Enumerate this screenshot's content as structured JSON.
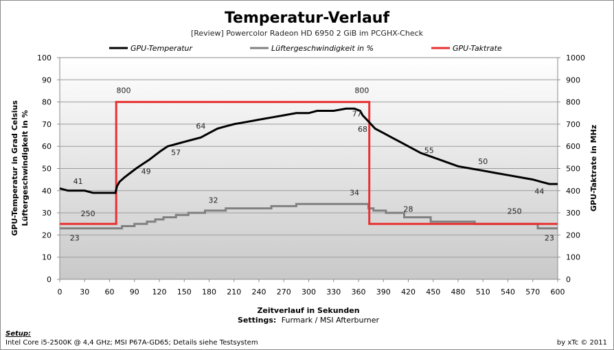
{
  "chart_data": {
    "type": "line",
    "title": "Temperatur-Verlauf",
    "subtitle": "[Review] Powercolor Radeon HD 6950 2 GiB im PCGHX-Check",
    "xlabel": "Zeitverlauf in Sekunden",
    "settings_label": "Settings:",
    "settings_value": "Furmark / MSI Afterburner",
    "ylabel_left_line1": "GPU-Temperatur  in Grad Celsius",
    "ylabel_left_line2": "Lüftergeschwindigkeit  in %",
    "ylabel_right": "GPU-Taktrate in MHz",
    "xlim": [
      0,
      600
    ],
    "ylim_left": [
      0,
      100
    ],
    "ylim_right": [
      0,
      1000
    ],
    "x_ticks": [
      "0",
      "30",
      "60",
      "90",
      "120",
      "150",
      "180",
      "210",
      "240",
      "270",
      "300",
      "330",
      "360",
      "390",
      "420",
      "450",
      "480",
      "510",
      "540",
      "570",
      "600"
    ],
    "y_ticks_left": [
      "0",
      "10",
      "20",
      "30",
      "40",
      "50",
      "60",
      "70",
      "80",
      "90",
      "100"
    ],
    "y_ticks_right": [
      "0",
      "100",
      "200",
      "300",
      "400",
      "500",
      "600",
      "700",
      "800",
      "900",
      "1000"
    ],
    "grid": true,
    "legend_position": "top",
    "series": [
      {
        "name": "GPU-Temperatur",
        "axis": "left",
        "color": "#000000",
        "points": [
          [
            0,
            41
          ],
          [
            10,
            40
          ],
          [
            30,
            40
          ],
          [
            40,
            39
          ],
          [
            65,
            39
          ],
          [
            67,
            39
          ],
          [
            69,
            42
          ],
          [
            72,
            44
          ],
          [
            78,
            46
          ],
          [
            85,
            48
          ],
          [
            92,
            50
          ],
          [
            100,
            52
          ],
          [
            108,
            54
          ],
          [
            115,
            56
          ],
          [
            122,
            58
          ],
          [
            130,
            60
          ],
          [
            140,
            61
          ],
          [
            150,
            62
          ],
          [
            160,
            63
          ],
          [
            170,
            64
          ],
          [
            180,
            66
          ],
          [
            190,
            68
          ],
          [
            200,
            69
          ],
          [
            210,
            70
          ],
          [
            225,
            71
          ],
          [
            240,
            72
          ],
          [
            255,
            73
          ],
          [
            270,
            74
          ],
          [
            285,
            75
          ],
          [
            300,
            75
          ],
          [
            310,
            76
          ],
          [
            330,
            76
          ],
          [
            345,
            77
          ],
          [
            355,
            77
          ],
          [
            362,
            76
          ],
          [
            365,
            74
          ],
          [
            370,
            72
          ],
          [
            375,
            70
          ],
          [
            380,
            68
          ],
          [
            390,
            66
          ],
          [
            400,
            64
          ],
          [
            410,
            62
          ],
          [
            420,
            60
          ],
          [
            435,
            57
          ],
          [
            450,
            55
          ],
          [
            465,
            53
          ],
          [
            480,
            51
          ],
          [
            495,
            50
          ],
          [
            510,
            49
          ],
          [
            525,
            48
          ],
          [
            540,
            47
          ],
          [
            555,
            46
          ],
          [
            570,
            45
          ],
          [
            580,
            44
          ],
          [
            590,
            43
          ],
          [
            600,
            43
          ]
        ]
      },
      {
        "name": "Lüftergeschwindigkeit in %",
        "axis": "left",
        "color": "#808080",
        "points": [
          [
            0,
            23
          ],
          [
            75,
            23
          ],
          [
            75,
            24
          ],
          [
            90,
            24
          ],
          [
            90,
            25
          ],
          [
            105,
            25
          ],
          [
            105,
            26
          ],
          [
            115,
            26
          ],
          [
            115,
            27
          ],
          [
            125,
            27
          ],
          [
            125,
            28
          ],
          [
            140,
            28
          ],
          [
            140,
            29
          ],
          [
            155,
            29
          ],
          [
            155,
            30
          ],
          [
            175,
            30
          ],
          [
            175,
            31
          ],
          [
            200,
            31
          ],
          [
            200,
            32
          ],
          [
            255,
            32
          ],
          [
            255,
            33
          ],
          [
            285,
            33
          ],
          [
            285,
            34
          ],
          [
            372,
            34
          ],
          [
            372,
            32
          ],
          [
            378,
            32
          ],
          [
            378,
            31
          ],
          [
            393,
            31
          ],
          [
            393,
            30
          ],
          [
            415,
            30
          ],
          [
            415,
            28
          ],
          [
            447,
            28
          ],
          [
            447,
            26
          ],
          [
            500,
            26
          ],
          [
            500,
            25
          ],
          [
            576,
            25
          ],
          [
            576,
            23
          ],
          [
            600,
            23
          ]
        ]
      },
      {
        "name": "GPU-Taktrate",
        "axis": "right",
        "color": "#e83030",
        "points": [
          [
            0,
            250
          ],
          [
            68,
            250
          ],
          [
            68,
            800
          ],
          [
            373,
            800
          ],
          [
            373,
            250
          ],
          [
            600,
            250
          ]
        ]
      }
    ],
    "annotations": [
      {
        "text": "41",
        "x": 22,
        "y": 43,
        "axis": "left"
      },
      {
        "text": "250",
        "x": 34,
        "y": 28.5,
        "axis": "left"
      },
      {
        "text": "23",
        "x": 18,
        "y": 17.5,
        "axis": "left"
      },
      {
        "text": "800",
        "x": 77,
        "y": 84,
        "axis": "left"
      },
      {
        "text": "49",
        "x": 104,
        "y": 47.5,
        "axis": "left"
      },
      {
        "text": "57",
        "x": 140,
        "y": 56,
        "axis": "left"
      },
      {
        "text": "64",
        "x": 170,
        "y": 68,
        "axis": "left"
      },
      {
        "text": "32",
        "x": 185,
        "y": 34.5,
        "axis": "left"
      },
      {
        "text": "34",
        "x": 355,
        "y": 38,
        "axis": "left"
      },
      {
        "text": "800",
        "x": 364,
        "y": 84,
        "axis": "left"
      },
      {
        "text": "77",
        "x": 358,
        "y": 73.5,
        "axis": "left"
      },
      {
        "text": "68",
        "x": 365,
        "y": 66.5,
        "axis": "left"
      },
      {
        "text": "28",
        "x": 420,
        "y": 30.5,
        "axis": "left"
      },
      {
        "text": "55",
        "x": 445,
        "y": 57,
        "axis": "left"
      },
      {
        "text": "50",
        "x": 510,
        "y": 52,
        "axis": "left"
      },
      {
        "text": "250",
        "x": 548,
        "y": 29.5,
        "axis": "left"
      },
      {
        "text": "44",
        "x": 578,
        "y": 38.5,
        "axis": "left"
      },
      {
        "text": "23",
        "x": 590,
        "y": 17.5,
        "axis": "left"
      }
    ]
  },
  "footer": {
    "setup_label": "Setup:",
    "hardware": "Intel Core i5-2500K @ 4,4 GHz; MSI P67A-GD65; Details siehe Testsystem",
    "credit": "by xTc © 2011"
  }
}
